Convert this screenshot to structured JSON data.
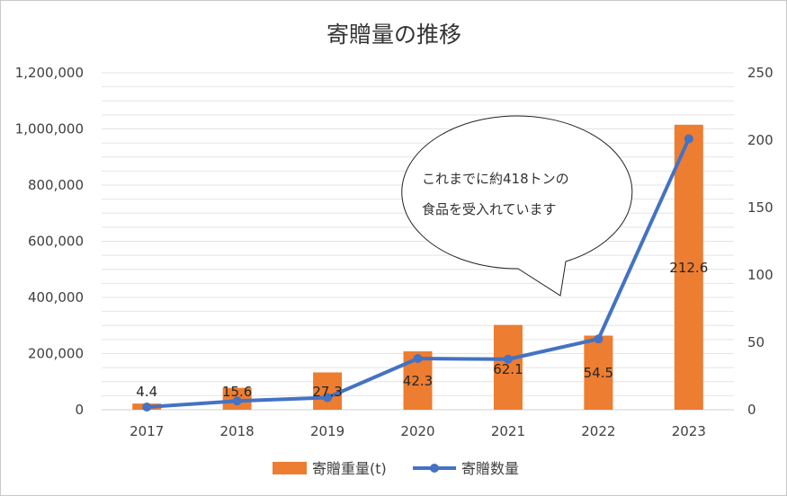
{
  "chart_data": {
    "type": "bar+line",
    "title": "寄贈量の推移",
    "categories": [
      "2017",
      "2018",
      "2019",
      "2020",
      "2021",
      "2022",
      "2023"
    ],
    "y_left": {
      "range": [
        0,
        1200000
      ],
      "ticks": [
        "0",
        "200,000",
        "400,000",
        "600,000",
        "800,000",
        "1,000,000",
        "1,200,000"
      ]
    },
    "y_right": {
      "range": [
        0,
        250
      ],
      "ticks": [
        "0",
        "50",
        "100",
        "150",
        "200",
        "250"
      ]
    },
    "grid": true,
    "legend_position": "bottom",
    "series": [
      {
        "name": "寄贈重量(t)",
        "type": "bar",
        "axis": "left",
        "color": "#ED7D31",
        "values": [
          22000,
          78000,
          133000,
          208000,
          302000,
          264000,
          1015000
        ],
        "data_labels": [
          "4.4",
          "15.6",
          "27.3",
          "42.3",
          "62.1",
          "54.5",
          "212.6"
        ]
      },
      {
        "name": "寄贈数量",
        "type": "line",
        "axis": "right",
        "color": "#4472C4",
        "values": [
          2,
          6.5,
          9,
          38,
          37.5,
          52.5,
          201
        ]
      }
    ],
    "annotation": {
      "lines": [
        "これまでに約418トンの",
        "食品を受入れています"
      ]
    }
  }
}
